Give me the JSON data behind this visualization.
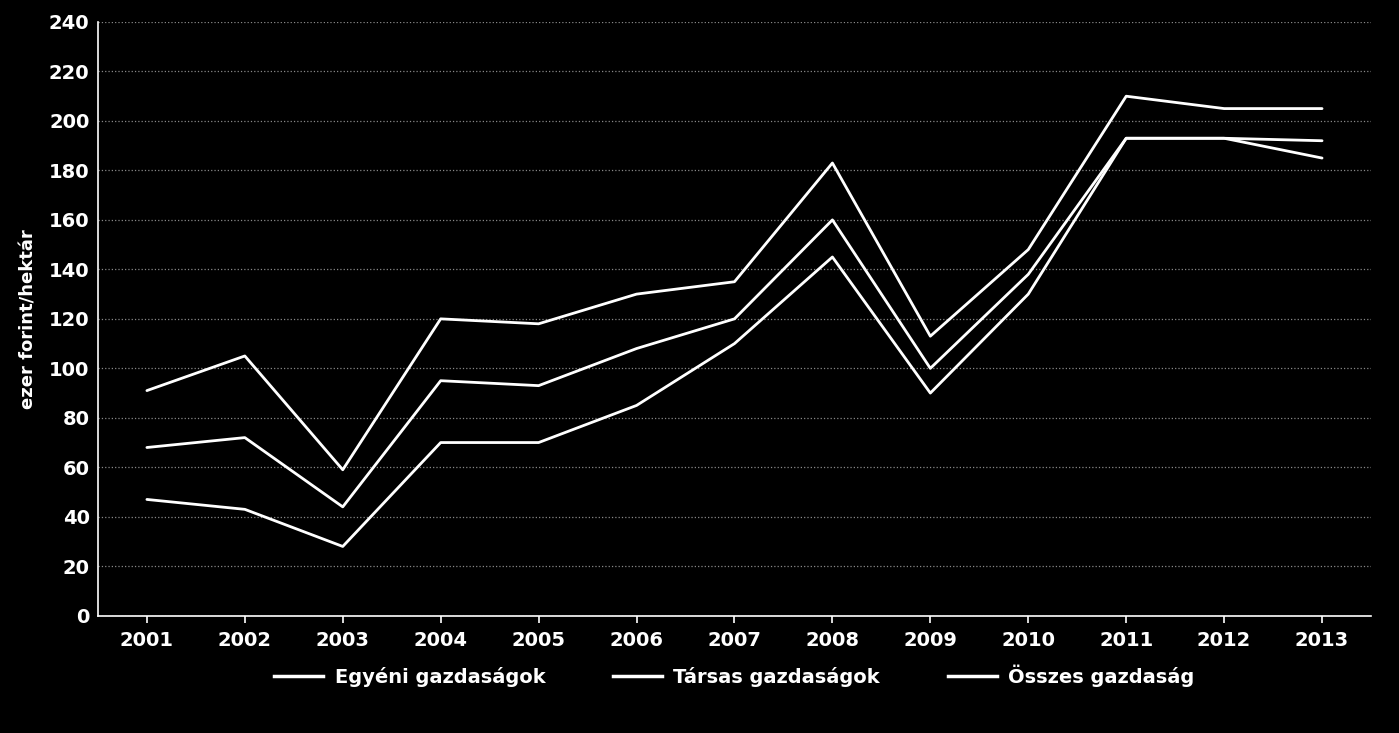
{
  "years": [
    2001,
    2002,
    2003,
    2004,
    2005,
    2006,
    2007,
    2008,
    2009,
    2010,
    2011,
    2012,
    2013
  ],
  "egyeni": [
    47,
    43,
    28,
    70,
    70,
    85,
    110,
    145,
    90,
    130,
    193,
    193,
    185
  ],
  "tarsas": [
    91,
    105,
    59,
    120,
    118,
    130,
    135,
    183,
    113,
    148,
    210,
    205,
    205
  ],
  "osszes": [
    68,
    72,
    44,
    95,
    93,
    108,
    120,
    160,
    100,
    138,
    193,
    193,
    192
  ],
  "ylabel": "ezer forint/hektár",
  "ylim": [
    0,
    240
  ],
  "yticks": [
    0,
    20,
    40,
    60,
    80,
    100,
    120,
    140,
    160,
    180,
    200,
    220,
    240
  ],
  "legend_labels": [
    "Egyéni gazdaságok",
    "Társas gazdaságok",
    "Összes gazdaság"
  ],
  "background_color": "#000000",
  "line_color": "#ffffff",
  "grid_color": "#888888",
  "line_width": 2.0,
  "font_color": "#ffffff",
  "grid_linestyle": ":",
  "grid_linewidth": 0.9
}
